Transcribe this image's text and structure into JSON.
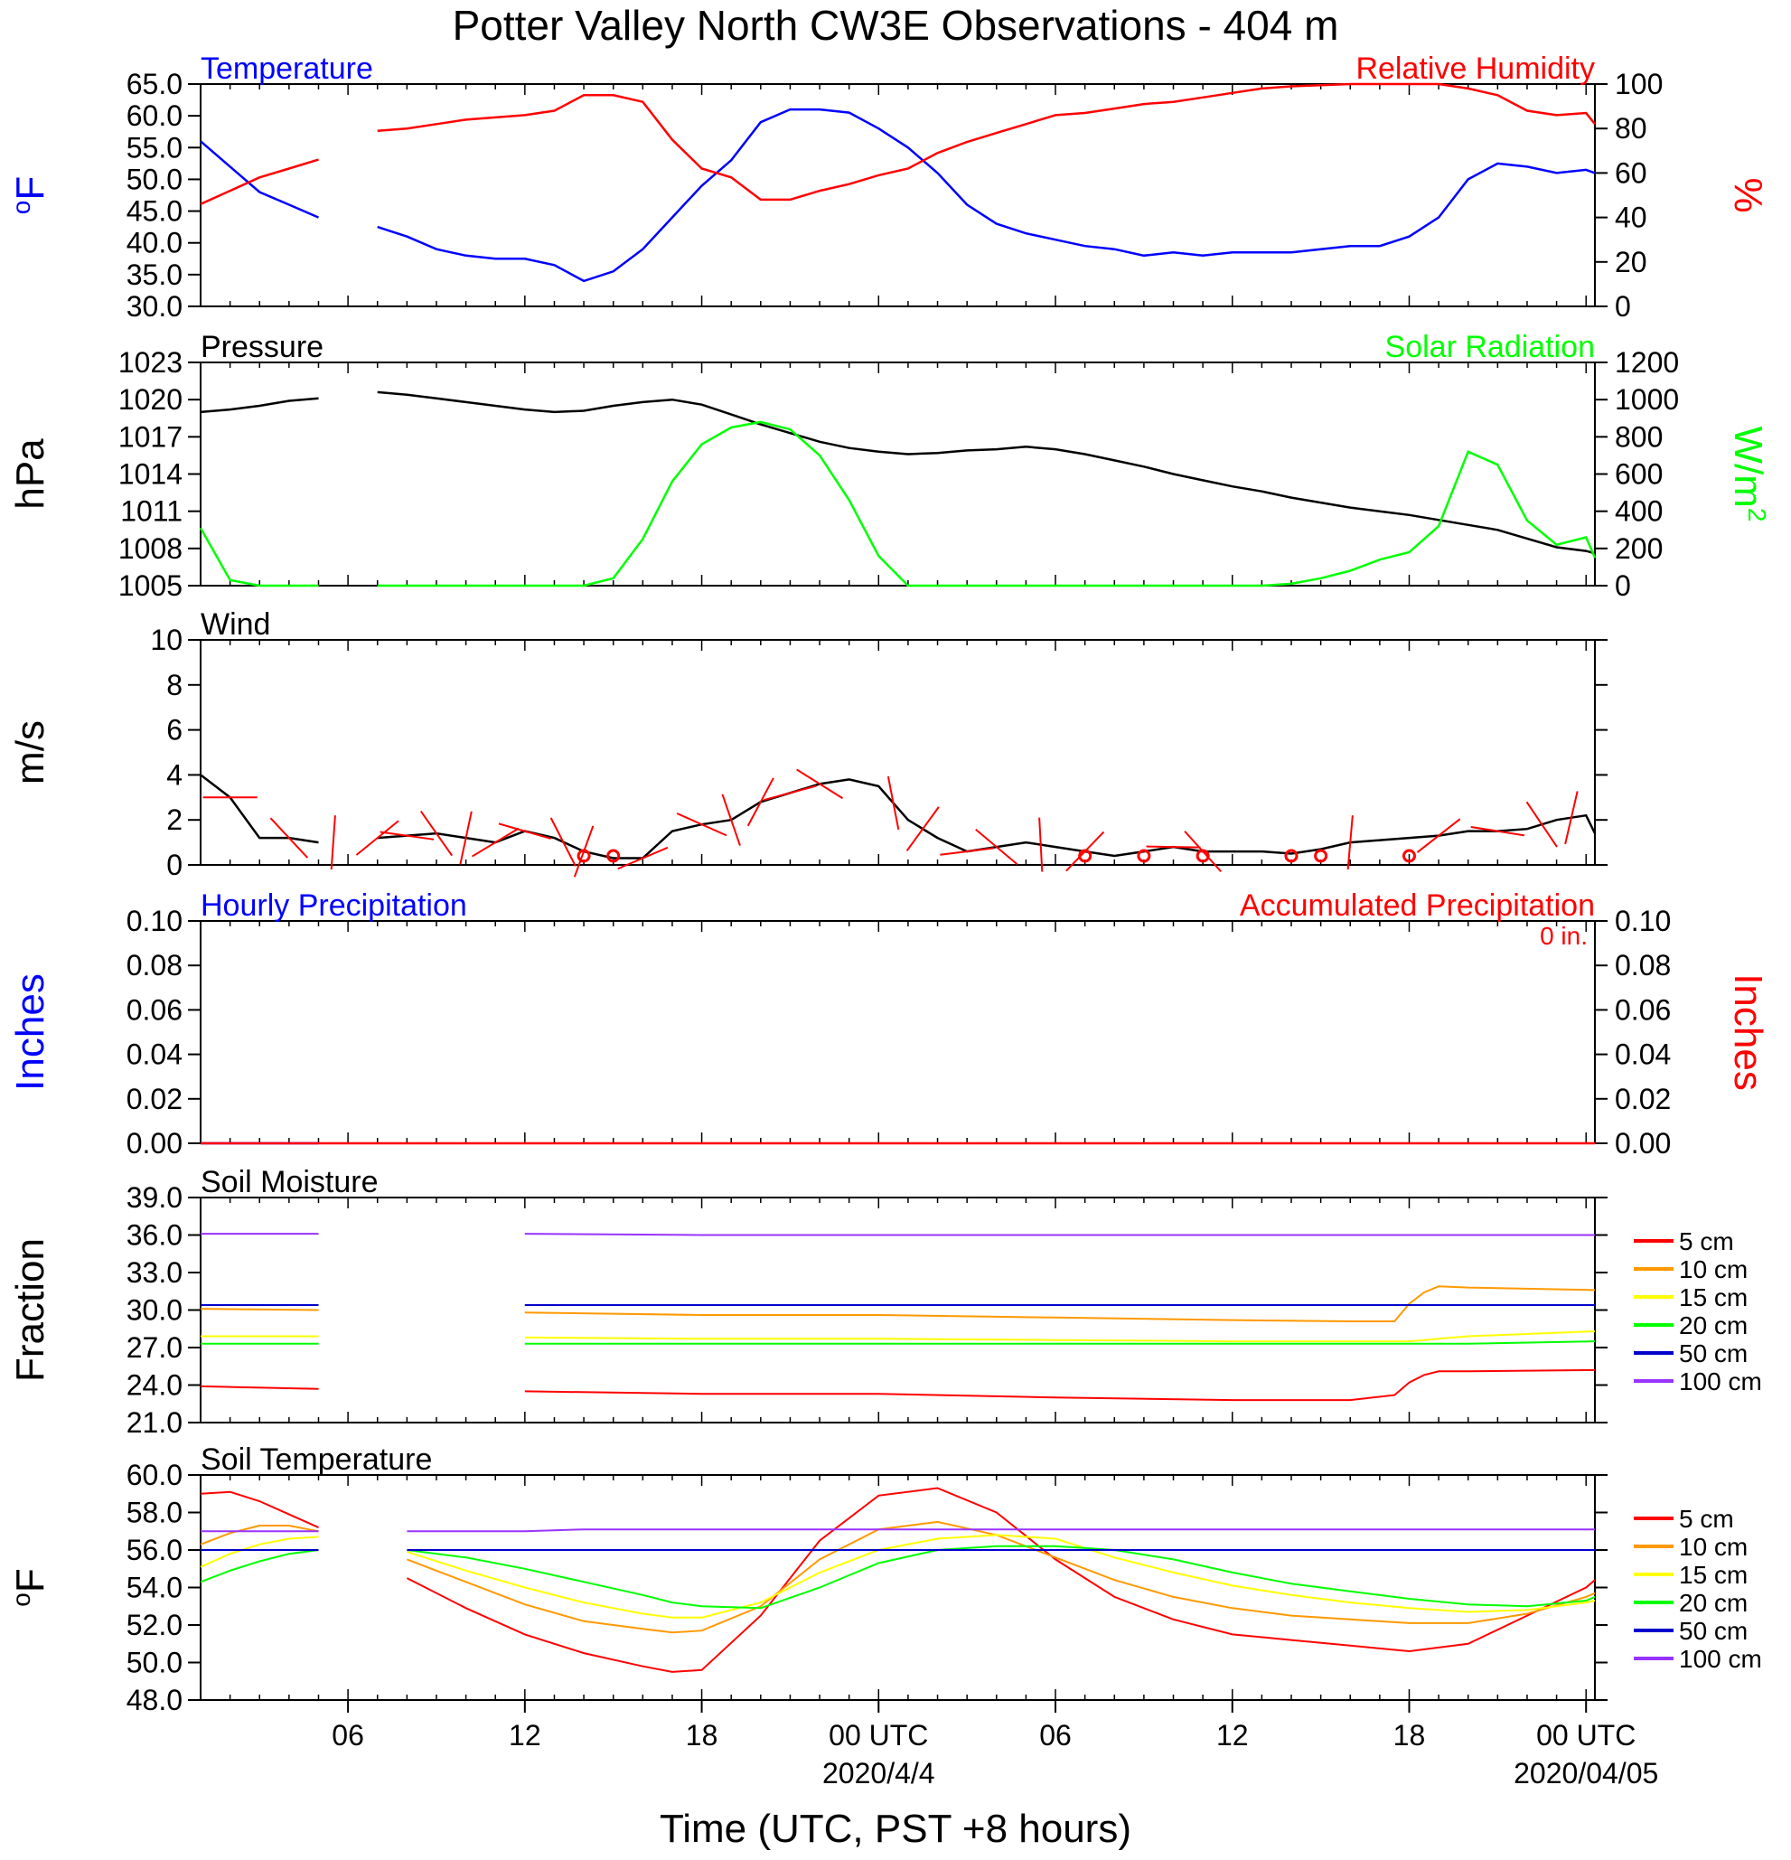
{
  "title": "Potter Valley North CW3E Observations - 404 m",
  "xlabel": "Time (UTC, PST +8 hours)",
  "x_ticks": [
    {
      "hour": 6,
      "label": "06",
      "date": ""
    },
    {
      "hour": 12,
      "label": "12",
      "date": ""
    },
    {
      "hour": 18,
      "label": "18",
      "date": ""
    },
    {
      "hour": 24,
      "label": "00 UTC",
      "date": "2020/4/4"
    },
    {
      "hour": 30,
      "label": "06",
      "date": ""
    },
    {
      "hour": 36,
      "label": "12",
      "date": ""
    },
    {
      "hour": 42,
      "label": "18",
      "date": ""
    },
    {
      "hour": 48,
      "label": "00 UTC",
      "date": "2020/04/05"
    }
  ],
  "x_range_hours": [
    1,
    48.3
  ],
  "colors": {
    "blue": "#0000ff",
    "red": "#ff0000",
    "green": "#00ff00",
    "black": "#000000",
    "orange": "#ff9900",
    "yellow": "#ffff00",
    "navy": "#0000cc",
    "purple": "#9933ff"
  },
  "chart_data": [
    {
      "type": "line",
      "title_left": "Temperature",
      "title_right": "Relative Humidity",
      "ylabel_left": "oF",
      "ylabel_right": "%",
      "ylim_left": [
        30,
        65
      ],
      "yticks_left": [
        "30.0",
        "35.0",
        "40.0",
        "45.0",
        "50.0",
        "55.0",
        "60.0",
        "65.0"
      ],
      "ylim_right": [
        0,
        100
      ],
      "yticks_right": [
        "0",
        "20",
        "40",
        "60",
        "80",
        "100"
      ],
      "x_hours": [
        1,
        2,
        3,
        4,
        5,
        6,
        7,
        8,
        9,
        10,
        11,
        12,
        13,
        14,
        15,
        16,
        17,
        18,
        19,
        20,
        21,
        22,
        23,
        24,
        25,
        26,
        27,
        28,
        29,
        30,
        31,
        32,
        33,
        34,
        35,
        36,
        37,
        38,
        39,
        40,
        41,
        42,
        43,
        44,
        45,
        46,
        47,
        48,
        48.3
      ],
      "series": [
        {
          "name": "Temperature",
          "axis": "left",
          "color": "#0000ff",
          "values": [
            56,
            52,
            48,
            46,
            44,
            null,
            42.5,
            41,
            39,
            38,
            37.5,
            37.5,
            36.5,
            34,
            35.5,
            39,
            44,
            49,
            53,
            59,
            61,
            61,
            60.5,
            58,
            55,
            51,
            46,
            43,
            41.5,
            40.5,
            39.5,
            39,
            38,
            38.5,
            38,
            38.5,
            38.5,
            38.5,
            39,
            39.5,
            39.5,
            41,
            44,
            50,
            52.5,
            52,
            51,
            51.5,
            51
          ]
        },
        {
          "name": "Relative Humidity",
          "axis": "right",
          "color": "#ff0000",
          "values": [
            46,
            52,
            58,
            62,
            66,
            null,
            79,
            80,
            82,
            84,
            85,
            86,
            88,
            95,
            95,
            92,
            75,
            62,
            58,
            48,
            48,
            52,
            55,
            59,
            62,
            69,
            74,
            78,
            82,
            86,
            87,
            89,
            91,
            92,
            94,
            96,
            98,
            99,
            99.5,
            100,
            100,
            100,
            100,
            98,
            95,
            88,
            86,
            87,
            82
          ]
        }
      ]
    },
    {
      "type": "line",
      "title_left": "Pressure",
      "title_right": "Solar Radiation",
      "ylabel_left": "hPa",
      "ylabel_right": "W/m",
      "ylabel_right_sup": "2",
      "ylim_left": [
        1005,
        1023
      ],
      "yticks_left": [
        "1005",
        "1008",
        "1011",
        "1014",
        "1017",
        "1020",
        "1023"
      ],
      "ylim_right": [
        0,
        1200
      ],
      "yticks_right": [
        "0",
        "200",
        "400",
        "600",
        "800",
        "1000",
        "1200"
      ],
      "x_hours": [
        1,
        2,
        3,
        4,
        5,
        6,
        7,
        8,
        9,
        10,
        11,
        12,
        13,
        14,
        15,
        16,
        17,
        18,
        19,
        20,
        21,
        22,
        23,
        24,
        25,
        26,
        27,
        28,
        29,
        30,
        31,
        32,
        33,
        34,
        35,
        36,
        37,
        38,
        39,
        40,
        41,
        42,
        43,
        44,
        45,
        46,
        47,
        48,
        48.3
      ],
      "series": [
        {
          "name": "Pressure",
          "axis": "left",
          "color": "#000000",
          "values": [
            1019,
            1019.2,
            1019.5,
            1019.9,
            1020.1,
            null,
            1020.6,
            1020.4,
            1020.1,
            1019.8,
            1019.5,
            1019.2,
            1019,
            1019.1,
            1019.5,
            1019.8,
            1020,
            1019.6,
            1018.8,
            1018,
            1017.3,
            1016.6,
            1016.1,
            1015.8,
            1015.6,
            1015.7,
            1015.9,
            1016,
            1016.2,
            1016,
            1015.6,
            1015.1,
            1014.6,
            1014,
            1013.5,
            1013,
            1012.6,
            1012.1,
            1011.7,
            1011.3,
            1011,
            1010.7,
            1010.3,
            1009.9,
            1009.5,
            1008.8,
            1008.1,
            1007.8,
            1007.6
          ]
        },
        {
          "name": "Solar Radiation",
          "axis": "right",
          "color": "#00ff00",
          "values": [
            310,
            30,
            0,
            0,
            0,
            null,
            0,
            0,
            0,
            0,
            0,
            0,
            0,
            0,
            40,
            250,
            560,
            760,
            850,
            880,
            840,
            700,
            460,
            160,
            0,
            0,
            0,
            0,
            0,
            0,
            0,
            0,
            0,
            0,
            0,
            0,
            0,
            10,
            40,
            80,
            140,
            180,
            320,
            720,
            650,
            350,
            220,
            260,
            150
          ]
        }
      ]
    },
    {
      "type": "line",
      "title_left": "Wind",
      "ylabel_left": "m/s",
      "ylim_left": [
        0,
        10
      ],
      "yticks_left": [
        "0",
        "2",
        "4",
        "6",
        "8",
        "10"
      ],
      "x_hours": [
        1,
        2,
        3,
        4,
        5,
        6,
        7,
        8,
        9,
        10,
        11,
        12,
        13,
        14,
        15,
        16,
        17,
        18,
        19,
        20,
        21,
        22,
        23,
        24,
        25,
        26,
        27,
        28,
        29,
        30,
        31,
        32,
        33,
        34,
        35,
        36,
        37,
        38,
        39,
        40,
        41,
        42,
        43,
        44,
        45,
        46,
        47,
        48,
        48.3
      ],
      "series": [
        {
          "name": "Wind",
          "axis": "left",
          "color": "#000000",
          "values": [
            4,
            3,
            1.2,
            1.2,
            1,
            null,
            1.2,
            1.3,
            1.4,
            1.2,
            1,
            1.5,
            1.2,
            0.6,
            0.3,
            0.3,
            1.5,
            1.8,
            2,
            2.8,
            3.2,
            3.6,
            3.8,
            3.5,
            2,
            1.2,
            0.6,
            0.8,
            1,
            0.8,
            0.6,
            0.4,
            0.6,
            0.8,
            0.6,
            0.6,
            0.6,
            0.5,
            0.7,
            1,
            1.1,
            1.2,
            1.3,
            1.5,
            1.5,
            1.6,
            2,
            2.2,
            1.4
          ]
        }
      ]
    },
    {
      "type": "line",
      "title_left": "Hourly Precipitation",
      "title_right": "Accumulated Precipitation",
      "accum_label": "0 in.",
      "ylabel_left": "Inches",
      "ylabel_right": "Inches",
      "ylim_left": [
        0,
        0.1
      ],
      "yticks_left": [
        "0.00",
        "0.02",
        "0.04",
        "0.06",
        "0.08",
        "0.10"
      ],
      "ylim_right": [
        0,
        0.1
      ],
      "yticks_right": [
        "0.00",
        "0.02",
        "0.04",
        "0.06",
        "0.08",
        "0.10"
      ],
      "x_hours": [
        1,
        5,
        6,
        48.3
      ],
      "series": [
        {
          "name": "Hourly Precipitation",
          "axis": "left",
          "color": "#0000ff",
          "values": [
            0,
            0,
            null,
            0
          ]
        },
        {
          "name": "Accumulated Precipitation",
          "axis": "right",
          "color": "#ff0000",
          "values": [
            0,
            0,
            0,
            0
          ]
        }
      ]
    },
    {
      "type": "line",
      "title_left": "Soil Moisture",
      "ylabel_left": "Fraction",
      "ylim_left": [
        21,
        39
      ],
      "yticks_left": [
        "21.0",
        "24.0",
        "27.0",
        "30.0",
        "33.0",
        "36.0",
        "39.0"
      ],
      "x_hours": [
        1,
        5,
        6,
        12,
        18,
        24,
        30,
        36,
        40,
        41.5,
        42,
        42.5,
        43,
        44,
        48.3
      ],
      "series": [
        {
          "name": "5 cm",
          "color": "#ff0000",
          "values": [
            23.9,
            23.7,
            null,
            23.5,
            23.3,
            23.3,
            23.0,
            22.8,
            22.8,
            23.2,
            24.2,
            24.8,
            25.1,
            25.1,
            25.2
          ]
        },
        {
          "name": "10 cm",
          "color": "#ff9900",
          "values": [
            30.1,
            30.0,
            null,
            29.8,
            29.6,
            29.6,
            29.4,
            29.2,
            29.1,
            29.1,
            30.5,
            31.4,
            31.9,
            31.8,
            31.6
          ]
        },
        {
          "name": "15 cm",
          "color": "#ffff00",
          "values": [
            27.9,
            27.9,
            null,
            27.8,
            27.7,
            27.7,
            27.6,
            27.5,
            27.5,
            27.5,
            27.5,
            27.6,
            27.7,
            27.9,
            28.3
          ]
        },
        {
          "name": "20 cm",
          "color": "#00ff00",
          "values": [
            27.3,
            27.3,
            null,
            27.3,
            27.3,
            27.3,
            27.3,
            27.3,
            27.3,
            27.3,
            27.3,
            27.3,
            27.3,
            27.3,
            27.5
          ]
        },
        {
          "name": "50 cm",
          "color": "#0000cc",
          "values": [
            30.4,
            30.4,
            null,
            30.4,
            30.4,
            30.4,
            30.4,
            30.4,
            30.4,
            30.4,
            30.4,
            30.4,
            30.4,
            30.4,
            30.4
          ]
        },
        {
          "name": "100 cm",
          "color": "#9933ff",
          "values": [
            36.1,
            36.1,
            null,
            36.1,
            36.0,
            36.0,
            36.0,
            36.0,
            36.0,
            36.0,
            36.0,
            36.0,
            36.0,
            36.0,
            36.0
          ]
        }
      ]
    },
    {
      "type": "line",
      "title_left": "Soil Temperature",
      "ylabel_left": "oF",
      "ylim_left": [
        48,
        60
      ],
      "yticks_left": [
        "48.0",
        "50.0",
        "52.0",
        "54.0",
        "56.0",
        "58.0",
        "60.0"
      ],
      "x_hours": [
        1,
        2,
        3,
        4,
        5,
        6,
        8,
        10,
        12,
        14,
        16,
        17,
        18,
        20,
        22,
        24,
        26,
        28,
        30,
        32,
        34,
        36,
        38,
        40,
        42,
        44,
        46,
        48,
        48.3
      ],
      "series": [
        {
          "name": "5 cm",
          "color": "#ff0000",
          "values": [
            59,
            59.1,
            58.6,
            57.9,
            57.2,
            null,
            54.5,
            52.9,
            51.5,
            50.5,
            49.8,
            49.5,
            49.6,
            52.5,
            56.5,
            58.9,
            59.3,
            58,
            55.5,
            53.5,
            52.3,
            51.5,
            51.2,
            50.9,
            50.6,
            51,
            52.5,
            54,
            54.4
          ]
        },
        {
          "name": "10 cm",
          "color": "#ff9900",
          "values": [
            56.3,
            56.9,
            57.3,
            57.3,
            57.0,
            null,
            55.5,
            54.3,
            53.1,
            52.2,
            51.8,
            51.6,
            51.7,
            53,
            55.5,
            57.1,
            57.5,
            56.8,
            55.6,
            54.4,
            53.5,
            52.9,
            52.5,
            52.3,
            52.1,
            52.1,
            52.6,
            53.5,
            53.7
          ]
        },
        {
          "name": "15 cm",
          "color": "#ffff00",
          "values": [
            55.1,
            55.8,
            56.3,
            56.6,
            56.7,
            null,
            55.9,
            54.9,
            54,
            53.2,
            52.6,
            52.4,
            52.4,
            53.2,
            54.8,
            56,
            56.6,
            56.8,
            56.6,
            55.6,
            54.8,
            54.1,
            53.6,
            53.2,
            52.9,
            52.7,
            52.8,
            53.2,
            53.3
          ]
        },
        {
          "name": "20 cm",
          "color": "#00ff00",
          "values": [
            54.3,
            54.9,
            55.4,
            55.8,
            56.0,
            null,
            56.0,
            55.6,
            55,
            54.3,
            53.6,
            53.2,
            53,
            52.9,
            54,
            55.3,
            56,
            56.2,
            56.2,
            56,
            55.5,
            54.8,
            54.2,
            53.8,
            53.4,
            53.1,
            53,
            53.3,
            53.5
          ]
        },
        {
          "name": "50 cm",
          "color": "#0000cc",
          "values": [
            56,
            56,
            56,
            56,
            56,
            null,
            56,
            56,
            56,
            56,
            56,
            56,
            56,
            56,
            56,
            56,
            56,
            56,
            56,
            56,
            56,
            56,
            56,
            56,
            56,
            56,
            56,
            56,
            56
          ]
        },
        {
          "name": "100 cm",
          "color": "#9933ff",
          "values": [
            57,
            57,
            57,
            57,
            57,
            null,
            57,
            57,
            57,
            57.1,
            57.1,
            57.1,
            57.1,
            57.1,
            57.1,
            57.1,
            57.1,
            57.1,
            57.1,
            57.1,
            57.1,
            57.1,
            57.1,
            57.1,
            57.1,
            57.1,
            57.1,
            57.1,
            57.1
          ]
        }
      ]
    }
  ],
  "legend_soil": [
    "5 cm",
    "10 cm",
    "15 cm",
    "20 cm",
    "50 cm",
    "100 cm"
  ],
  "wind_barbs_hours": [
    2,
    4,
    5.5,
    7,
    8,
    9,
    10,
    11,
    12,
    13.3,
    14,
    16,
    18,
    19,
    20,
    21,
    22,
    24.5,
    25.5,
    27,
    28,
    29.5,
    31,
    34,
    35,
    40,
    43,
    45,
    46.5,
    47.5
  ],
  "calm_marks_hours": [
    14,
    15,
    31,
    33,
    35,
    38,
    39,
    42
  ]
}
